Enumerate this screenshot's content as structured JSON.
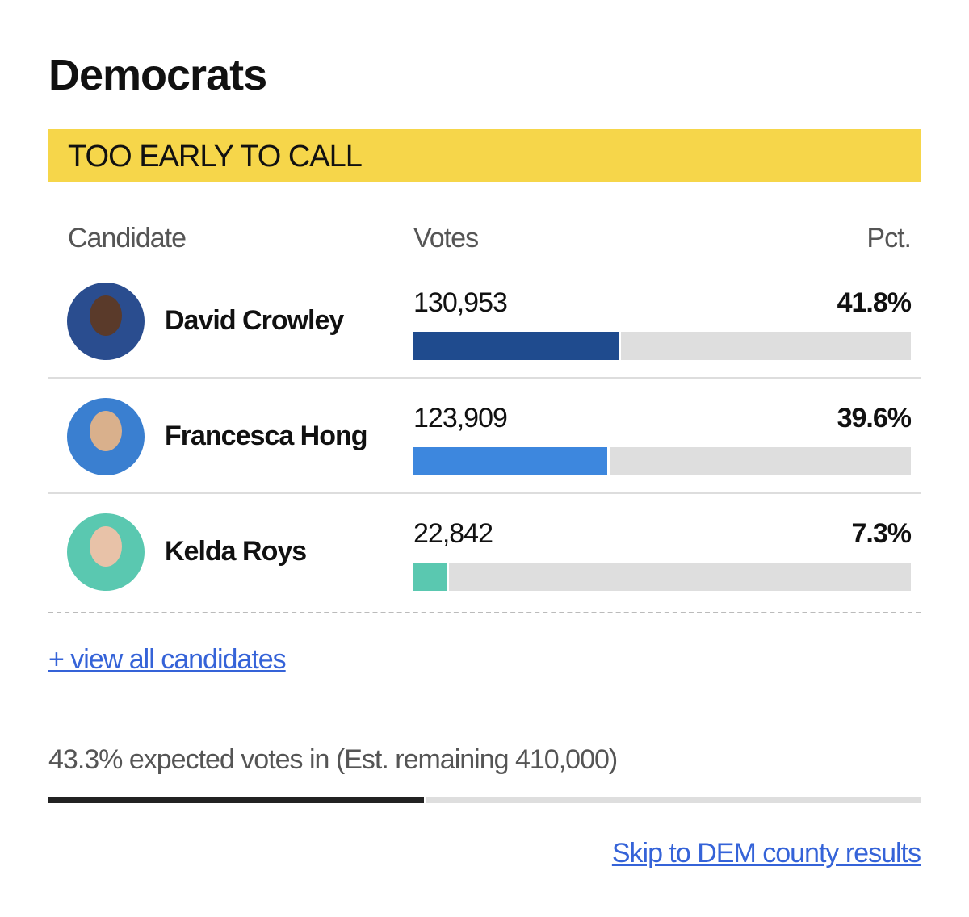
{
  "header": {
    "title": "Democrats",
    "status": "TOO EARLY TO CALL"
  },
  "table": {
    "columns": [
      "Candidate",
      "Votes",
      "Pct."
    ],
    "rows": [
      {
        "name": "David Crowley",
        "votes": "130,953",
        "pct": {
          "value": 41.8,
          "label": "41.8%"
        },
        "color": "#1f4b8e"
      },
      {
        "name": "Francesca Hong",
        "votes": "123,909",
        "pct": {
          "value": 39.6,
          "label": "39.6%"
        },
        "color": "#3d87de"
      },
      {
        "name": "Kelda Roys",
        "votes": "22,842",
        "pct": {
          "value": 7.3,
          "label": "7.3%"
        },
        "color": "#5ac8b0"
      }
    ]
  },
  "links": {
    "view_all": "+ view all candidates",
    "county": "Skip to DEM county results"
  },
  "progress": {
    "value": 43.3,
    "label": "43.3% expected votes in (Est. remaining 410,000)"
  }
}
